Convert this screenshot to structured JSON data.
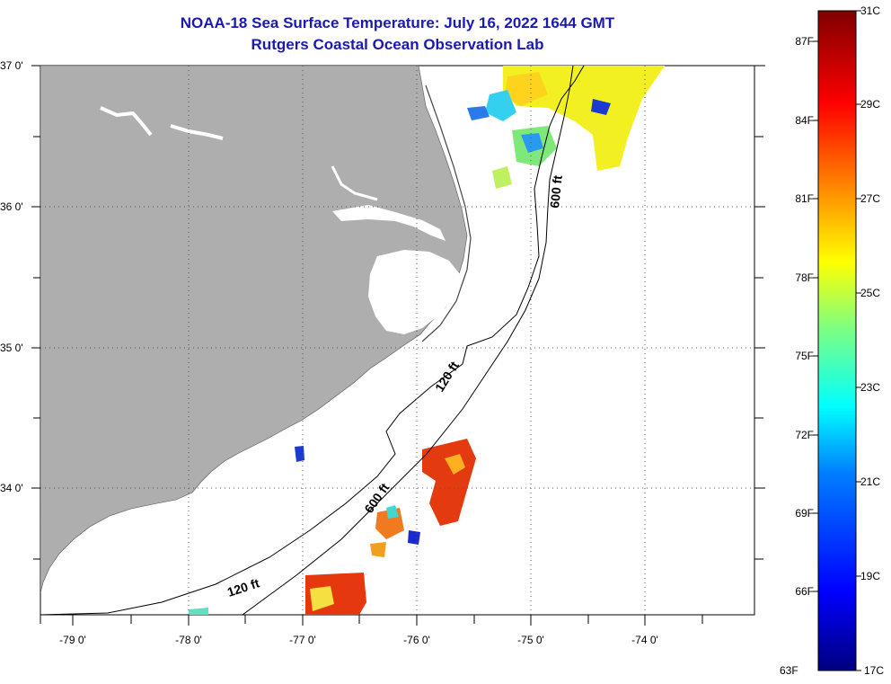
{
  "header": {
    "title": "NOAA-18 Sea Surface Temperature:  July 16, 2022 1644 GMT",
    "subtitle": "Rutgers Coastal Ocean Observation Lab"
  },
  "axes": {
    "lat_labels": [
      "37 0'",
      "36 0'",
      "35 0'",
      "34 0'"
    ],
    "lon_labels": [
      "-79 0'",
      "-78 0'",
      "-77 0'",
      "-76 0'",
      "-75 0'",
      "-74 0'"
    ],
    "lat_range": [
      33.1,
      37.0
    ],
    "lon_range": [
      -79.3,
      -73.1
    ]
  },
  "contours": {
    "label_120_north": "120 ft",
    "label_600_south": "600 ft",
    "label_600_north": "600 ft",
    "label_120_south": "120 ft"
  },
  "colorbar": {
    "fahrenheit_labels": [
      "87F",
      "84F",
      "81F",
      "78F",
      "75F",
      "72F",
      "69F",
      "66F",
      "63F"
    ],
    "celsius_labels": [
      "31C",
      "29C",
      "27C",
      "25C",
      "23C",
      "21C",
      "19C",
      "17C"
    ],
    "range_c": [
      17,
      31
    ],
    "colormap": [
      "#00007f",
      "#0000ff",
      "#007fff",
      "#00ffff",
      "#7fff7f",
      "#ffff00",
      "#ff7f00",
      "#ff0000",
      "#7f0000"
    ]
  },
  "colors": {
    "land": "#aeaeae",
    "title": "#1a1ab0",
    "sst_warm": "#e23a10",
    "sst_cool_nearshore": "#ffee22"
  }
}
